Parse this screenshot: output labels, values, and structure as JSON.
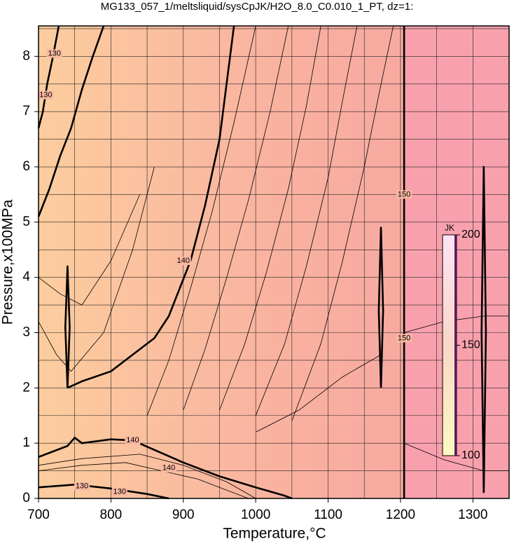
{
  "chart_data": {
    "type": "contour",
    "title": "MG133_057_1/meltsliquid/sysCpJK/H2O_8.0_C0.010_1_PT, dz=1:",
    "xlabel": "Temperature,°C",
    "ylabel": "Pressure,x100MPa",
    "xlim": [
      700,
      1350
    ],
    "ylim": [
      0,
      8.55
    ],
    "xticks": [
      700,
      800,
      900,
      1000,
      1100,
      1200,
      1300
    ],
    "yticks": [
      0,
      1,
      2,
      3,
      4,
      5,
      6,
      7,
      8
    ],
    "xminor": [
      750,
      850,
      950,
      1050,
      1150,
      1250,
      1350
    ],
    "yminor": [
      0.5,
      1.5,
      2.5,
      3.5,
      4.5,
      5.5,
      6.5,
      7.5,
      8.5
    ],
    "grid": true,
    "series": [
      {
        "bold": true,
        "x": [
          740,
          760,
          800,
          830,
          860,
          880,
          895,
          910,
          930,
          950,
          970
        ],
        "y": [
          2.0,
          2.12,
          2.3,
          2.6,
          2.9,
          3.3,
          3.8,
          4.3,
          5.3,
          6.5,
          8.55
        ]
      },
      {
        "bold": true,
        "x": [
          700,
          715,
          730,
          745,
          760,
          775,
          790
        ],
        "y": [
          5.1,
          5.6,
          6.2,
          6.7,
          7.4,
          8.0,
          8.55
        ]
      },
      {
        "bold": true,
        "x": [
          700,
          706,
          712,
          720,
          728
        ],
        "y": [
          6.7,
          7.0,
          7.5,
          8.0,
          8.55
        ]
      },
      {
        "bold": true,
        "x": [
          700,
          720,
          740,
          750,
          760,
          800,
          830,
          900,
          950,
          1000,
          1040,
          1050
        ],
        "y": [
          0.75,
          0.85,
          0.95,
          1.1,
          1.0,
          1.07,
          1.05,
          0.65,
          0.4,
          0.2,
          0.05,
          0
        ]
      },
      {
        "bold": true,
        "x": [
          700,
          750,
          800,
          850,
          880
        ],
        "y": [
          0.2,
          0.25,
          0.18,
          0.08,
          0
        ]
      },
      {
        "bold": true,
        "x": [
          1205,
          1205
        ],
        "y": [
          0,
          8.55
        ]
      },
      {
        "bold": true,
        "x": [
          740,
          737,
          740,
          743,
          740
        ],
        "y": [
          2.0,
          3.1,
          4.2,
          3.1,
          2.0
        ]
      },
      {
        "bold": true,
        "x": [
          1173,
          1170,
          1173,
          1176,
          1173
        ],
        "y": [
          2.0,
          3.4,
          4.9,
          3.4,
          2.0
        ]
      },
      {
        "bold": true,
        "x": [
          1315,
          1312,
          1315,
          1318,
          1315
        ],
        "y": [
          0.1,
          3.0,
          6.0,
          3.0,
          0.1
        ]
      },
      {
        "bold": false,
        "x": [
          700,
          760,
          820,
          870,
          920,
          960,
          990
        ],
        "y": [
          0.5,
          0.6,
          0.65,
          0.5,
          0.35,
          0.15,
          0
        ]
      },
      {
        "bold": false,
        "x": [
          700,
          760,
          840,
          900,
          960,
          1000
        ],
        "y": [
          0.6,
          0.72,
          0.8,
          0.6,
          0.3,
          0
        ]
      },
      {
        "bold": false,
        "x": [
          850,
          880,
          910,
          940,
          970,
          1000
        ],
        "y": [
          1.5,
          2.5,
          3.8,
          5.2,
          6.8,
          8.55
        ]
      },
      {
        "bold": false,
        "x": [
          900,
          930,
          960,
          990,
          1020,
          1045
        ],
        "y": [
          1.6,
          2.7,
          4.0,
          5.4,
          7.0,
          8.55
        ]
      },
      {
        "bold": false,
        "x": [
          950,
          985,
          1015,
          1045,
          1070,
          1090
        ],
        "y": [
          1.6,
          2.8,
          4.1,
          5.6,
          7.1,
          8.55
        ]
      },
      {
        "bold": false,
        "x": [
          1000,
          1040,
          1070,
          1100,
          1120,
          1140
        ],
        "y": [
          1.5,
          2.8,
          4.2,
          5.8,
          7.2,
          8.55
        ]
      },
      {
        "bold": false,
        "x": [
          1050,
          1090,
          1120,
          1150,
          1170,
          1190
        ],
        "y": [
          1.4,
          2.8,
          4.3,
          6.0,
          7.3,
          8.55
        ]
      },
      {
        "bold": false,
        "x": [
          700,
          730,
          760,
          800,
          840
        ],
        "y": [
          4.0,
          3.7,
          3.5,
          4.3,
          5.5
        ]
      },
      {
        "bold": false,
        "x": [
          700,
          725,
          745,
          790,
          830,
          860
        ],
        "y": [
          3.2,
          2.6,
          2.3,
          3.0,
          4.5,
          6.0
        ]
      },
      {
        "bold": false,
        "x": [
          1000,
          1060,
          1120,
          1173
        ],
        "y": [
          1.2,
          1.6,
          2.2,
          2.6
        ]
      },
      {
        "bold": false,
        "x": [
          1205,
          1260,
          1315,
          1350
        ],
        "y": [
          1.0,
          0.7,
          0.5,
          0.5
        ]
      },
      {
        "bold": false,
        "x": [
          1205,
          1260,
          1315,
          1350
        ],
        "y": [
          3.0,
          3.2,
          3.3,
          3.3
        ]
      }
    ],
    "labels": [
      {
        "value": 130,
        "x": 722,
        "y": 8.05
      },
      {
        "value": 130,
        "x": 710,
        "y": 7.3
      },
      {
        "value": 140,
        "x": 900,
        "y": 4.3
      },
      {
        "value": 150,
        "x": 1205,
        "y": 5.5
      },
      {
        "value": 150,
        "x": 1205,
        "y": 2.9
      },
      {
        "value": 140,
        "x": 830,
        "y": 1.05
      },
      {
        "value": 140,
        "x": 880,
        "y": 0.55
      },
      {
        "value": 130,
        "x": 760,
        "y": 0.22
      },
      {
        "value": 130,
        "x": 812,
        "y": 0.12
      }
    ],
    "colorbar": {
      "label": "JK",
      "lim": [
        100,
        200
      ],
      "ticks": [
        100,
        150,
        200
      ]
    }
  }
}
